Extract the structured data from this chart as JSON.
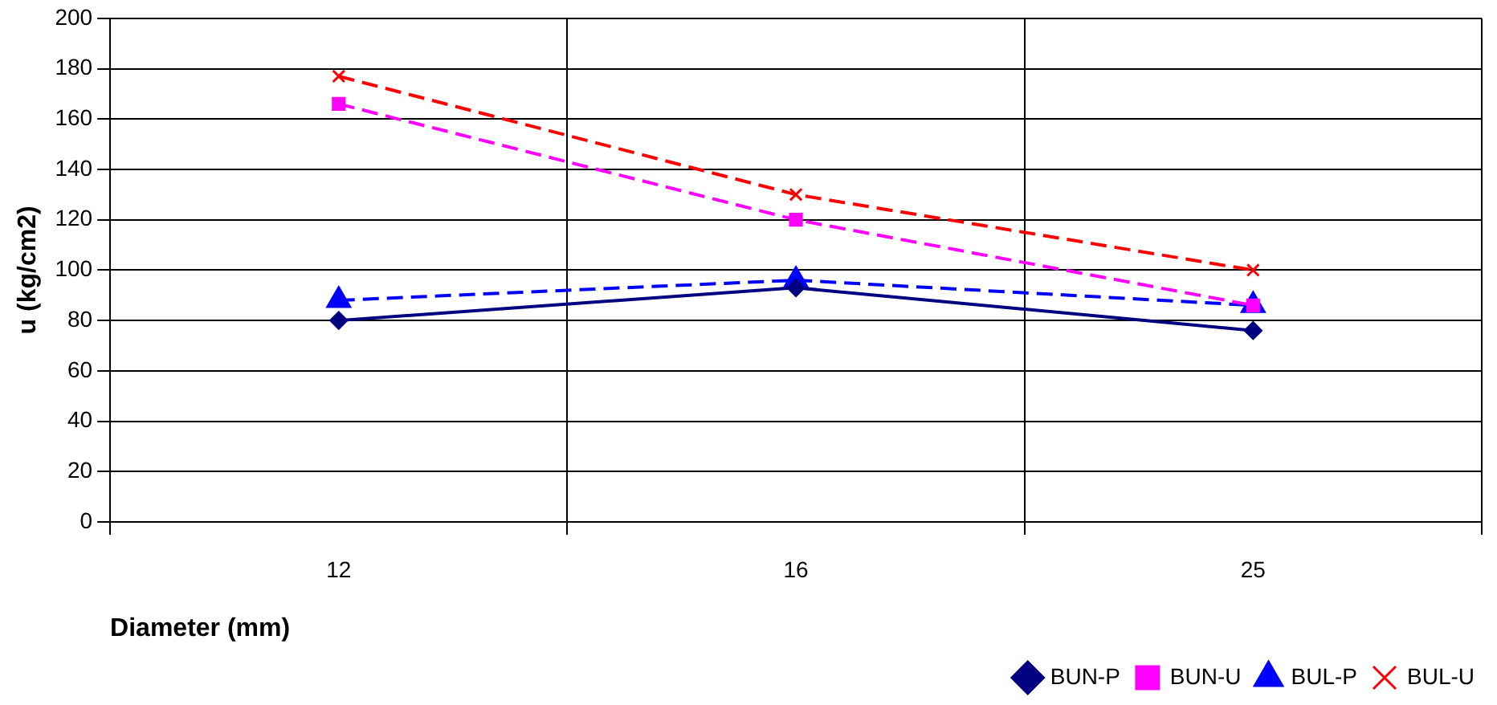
{
  "chart_data": {
    "type": "line",
    "xlabel": "Diameter (mm)",
    "ylabel": "u (kg/cm2)",
    "categories": [
      "12",
      "16",
      "25"
    ],
    "series": [
      {
        "name": "BUN-P",
        "color": "#000080",
        "values": [
          80,
          93,
          76
        ],
        "marker": "diamond",
        "line_style": "solid"
      },
      {
        "name": "BUN-U",
        "color": "#ff00ff",
        "values": [
          166,
          120,
          86
        ],
        "marker": "square",
        "line_style": "dashed"
      },
      {
        "name": "BUL-P",
        "color": "#0000ff",
        "values": [
          88,
          96,
          86
        ],
        "marker": "triangle",
        "line_style": "dashed"
      },
      {
        "name": "BUL-U",
        "color": "#ff0000",
        "values": [
          177,
          130,
          100
        ],
        "marker": "cross",
        "line_style": "dashed"
      }
    ],
    "ylim": [
      0,
      200
    ],
    "yticks": [
      0,
      20,
      40,
      60,
      80,
      100,
      120,
      140,
      160,
      180,
      200
    ],
    "grid": true,
    "legend": "bottom right"
  }
}
